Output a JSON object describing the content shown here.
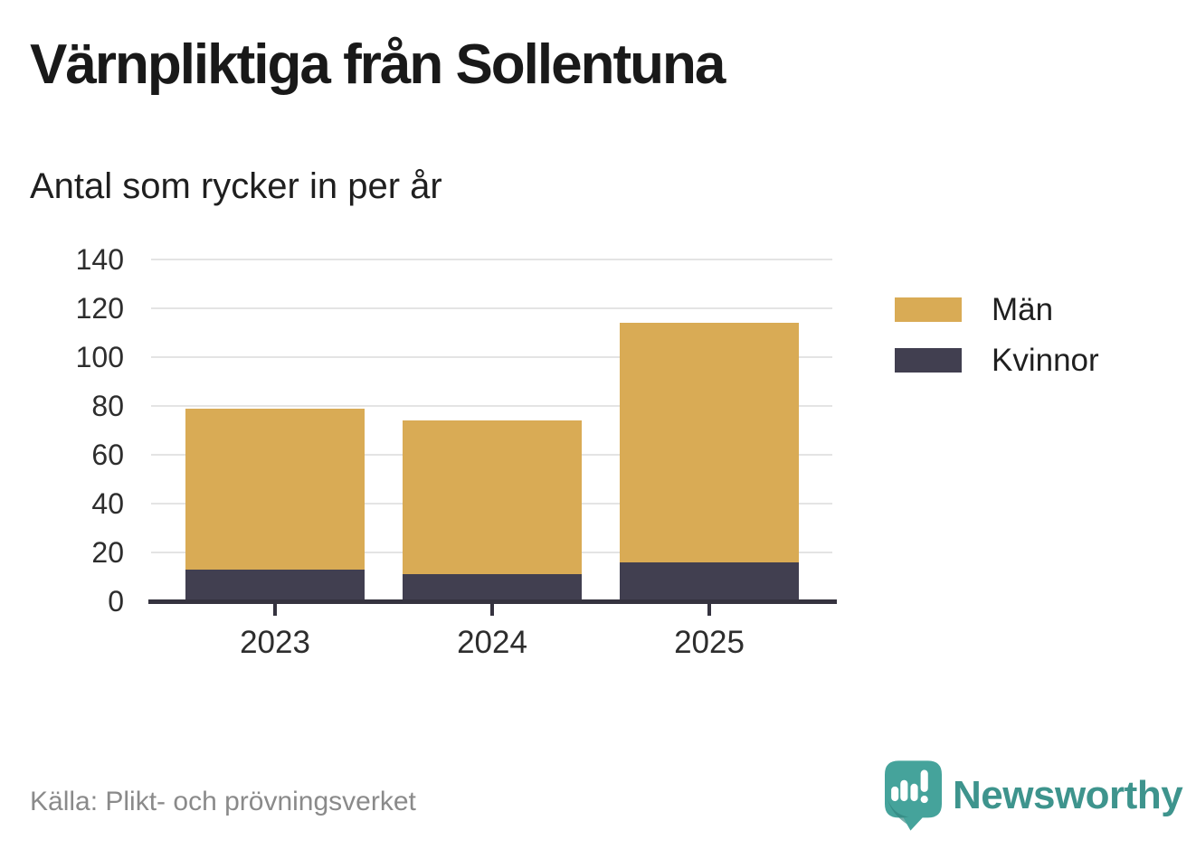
{
  "header": {
    "title": "Värnpliktiga från Sollentuna",
    "subtitle": "Antal som rycker in per år"
  },
  "chart_data": {
    "type": "bar",
    "stacked": true,
    "title": "Värnpliktiga från Sollentuna",
    "subtitle": "Antal som rycker in per år",
    "categories": [
      "2023",
      "2024",
      "2025"
    ],
    "series": [
      {
        "name": "Män",
        "values": [
          66,
          63,
          98
        ],
        "color": "#D9AB55"
      },
      {
        "name": "Kvinnor",
        "values": [
          13,
          11,
          16
        ],
        "color": "#413F50"
      }
    ],
    "stack_totals": [
      79,
      74,
      114
    ],
    "xlabel": "",
    "ylabel": "",
    "ylim": [
      0,
      140
    ],
    "yticks": [
      0,
      20,
      40,
      60,
      80,
      100,
      120,
      140
    ],
    "grid": true,
    "legend_position": "right-top"
  },
  "colors": {
    "men": "#D9AB55",
    "women": "#413F50",
    "grid": "#E4E4E4",
    "axis": "#35333F",
    "text": "#1f1f1f",
    "source_gray": "#8A8A8A",
    "brand_teal": "#3E948D",
    "logo_bubble_teal": "#45A39B"
  },
  "footer": {
    "source": "Källa: Plikt- och prövningsverket",
    "brand": "Newsworthy"
  }
}
